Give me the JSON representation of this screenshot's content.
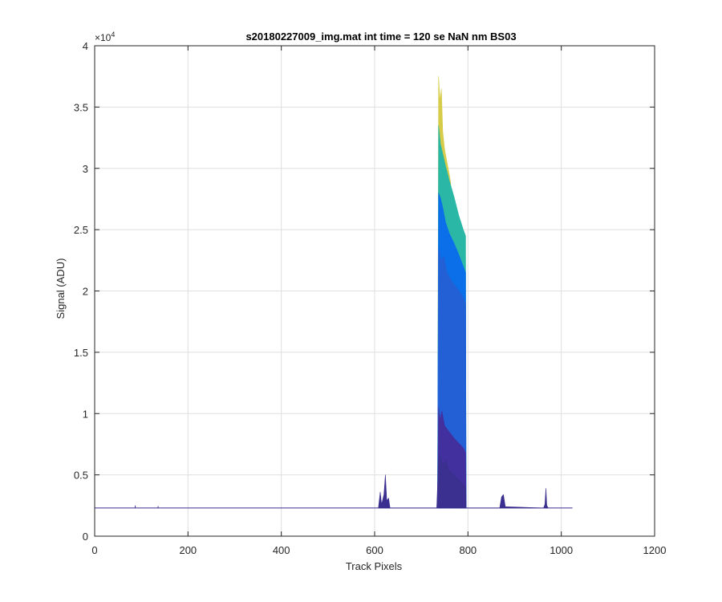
{
  "chart_data": {
    "type": "area",
    "title": "s20180227009_img.mat int time = 120 se  NaN nm BS03",
    "xlabel": "Track Pixels",
    "ylabel": "Signal (ADU)",
    "xlim": [
      0,
      1200
    ],
    "ylim": [
      0,
      40000
    ],
    "xticks": [
      0,
      200,
      400,
      600,
      800,
      1000,
      1200
    ],
    "yticks": [
      0,
      5000,
      10000,
      15000,
      20000,
      25000,
      30000,
      35000,
      40000
    ],
    "xtick_labels": [
      "0",
      "200",
      "400",
      "600",
      "800",
      "1000",
      "1200"
    ],
    "ytick_labels": [
      "0",
      "0.5",
      "1",
      "1.5",
      "2",
      "2.5",
      "3",
      "3.5",
      "4"
    ],
    "y_exponent_label": "×10",
    "y_exponent_power": "4",
    "grid": true,
    "baseline": 2300,
    "x_end": 1024,
    "series": [
      {
        "color": "#3b2f8f",
        "points": [
          [
            608,
            2300
          ],
          [
            612,
            3600
          ],
          [
            615,
            2600
          ],
          [
            620,
            3400
          ],
          [
            623,
            5000
          ],
          [
            626,
            2900
          ],
          [
            630,
            3100
          ],
          [
            633,
            2300
          ],
          [
            733,
            2300
          ],
          [
            737,
            6200
          ],
          [
            741,
            6600
          ],
          [
            745,
            5800
          ],
          [
            752,
            6200
          ],
          [
            760,
            5300
          ],
          [
            770,
            5000
          ],
          [
            780,
            4600
          ],
          [
            790,
            4200
          ],
          [
            795,
            4000
          ],
          [
            796,
            2300
          ],
          [
            868,
            2300
          ],
          [
            872,
            3200
          ],
          [
            876,
            3400
          ],
          [
            880,
            2400
          ],
          [
            962,
            2300
          ],
          [
            965,
            2600
          ],
          [
            967,
            3900
          ],
          [
            969,
            2500
          ],
          [
            972,
            2300
          ]
        ]
      },
      {
        "color": "#42309e",
        "points": [
          [
            735,
            2300
          ],
          [
            737,
            10500
          ],
          [
            740,
            9500
          ],
          [
            744,
            10200
          ],
          [
            750,
            9000
          ],
          [
            760,
            8500
          ],
          [
            770,
            8000
          ],
          [
            780,
            7600
          ],
          [
            790,
            7200
          ],
          [
            795,
            6800
          ],
          [
            796,
            2300
          ]
        ]
      },
      {
        "color": "#2360d6",
        "points": [
          [
            735,
            2300
          ],
          [
            737,
            23500
          ],
          [
            742,
            22500
          ],
          [
            748,
            22800
          ],
          [
            755,
            21500
          ],
          [
            765,
            20800
          ],
          [
            775,
            20300
          ],
          [
            785,
            19800
          ],
          [
            795,
            19000
          ],
          [
            796,
            2300
          ]
        ]
      },
      {
        "color": "#0a6fe8",
        "points": [
          [
            735,
            2300
          ],
          [
            737,
            28000
          ],
          [
            741,
            27600
          ],
          [
            746,
            26800
          ],
          [
            752,
            25600
          ],
          [
            760,
            24700
          ],
          [
            770,
            23900
          ],
          [
            780,
            23000
          ],
          [
            790,
            22000
          ],
          [
            795,
            21500
          ],
          [
            796,
            2300
          ]
        ]
      },
      {
        "color": "#2bb7a6",
        "points": [
          [
            735,
            2300
          ],
          [
            737,
            33500
          ],
          [
            741,
            32000
          ],
          [
            746,
            31200
          ],
          [
            752,
            30200
          ],
          [
            760,
            29000
          ],
          [
            770,
            27700
          ],
          [
            780,
            26200
          ],
          [
            790,
            25000
          ],
          [
            795,
            24500
          ],
          [
            796,
            2300
          ]
        ]
      },
      {
        "color": "#d7cc4a",
        "points": [
          [
            735,
            2300
          ],
          [
            737,
            37500
          ],
          [
            740,
            35500
          ],
          [
            743,
            36500
          ],
          [
            746,
            33000
          ],
          [
            750,
            31500
          ],
          [
            755,
            30500
          ],
          [
            760,
            29500
          ],
          [
            763,
            28800
          ],
          [
            766,
            2300
          ]
        ]
      }
    ],
    "small_peaks": [
      [
        87,
        2500
      ],
      [
        136,
        2450
      ]
    ]
  }
}
